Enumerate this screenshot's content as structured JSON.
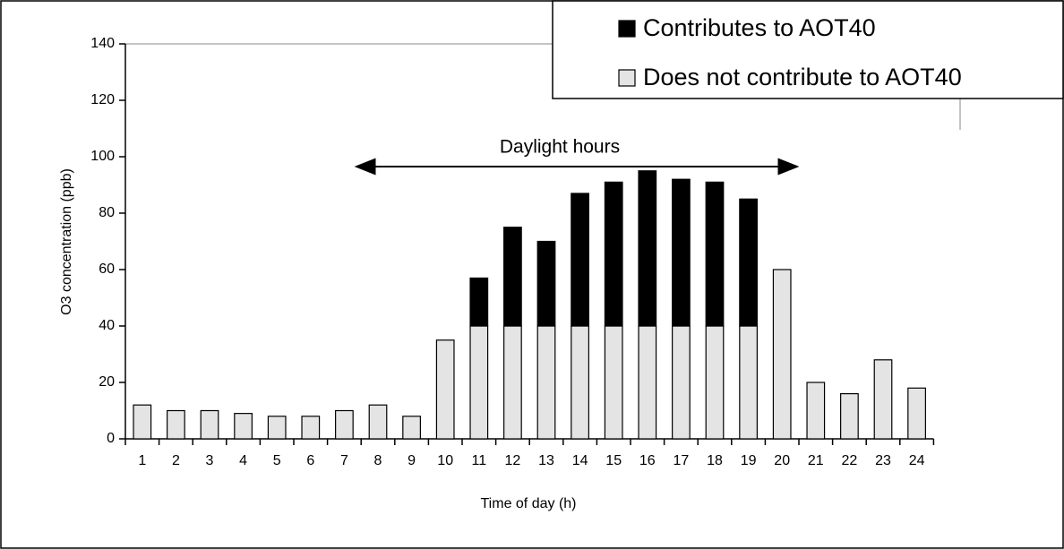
{
  "chart_data": {
    "type": "stacked_bar",
    "categories": [
      "1",
      "2",
      "3",
      "4",
      "5",
      "6",
      "7",
      "8",
      "9",
      "10",
      "11",
      "12",
      "13",
      "14",
      "15",
      "16",
      "17",
      "18",
      "19",
      "20",
      "21",
      "22",
      "23",
      "24"
    ],
    "series": [
      {
        "name": "Does not contribute to AOT40",
        "color": "#e4e4e4",
        "values": [
          12,
          10,
          10,
          9,
          8,
          8,
          10,
          12,
          8,
          35,
          40,
          40,
          40,
          40,
          40,
          40,
          40,
          40,
          40,
          60,
          20,
          16,
          28,
          18
        ]
      },
      {
        "name": "Contributes to AOT40",
        "color": "#000000",
        "values": [
          null,
          null,
          null,
          null,
          null,
          null,
          null,
          null,
          null,
          null,
          17,
          35,
          30,
          47,
          51,
          55,
          52,
          51,
          45,
          null,
          null,
          null,
          null,
          null
        ]
      }
    ],
    "ylim": [
      0,
      140
    ],
    "yticks": [
      0,
      20,
      40,
      60,
      80,
      100,
      120,
      140
    ],
    "xlabel": "Time of day (h)",
    "ylabel": "O3 concentration (ppb)",
    "annotation": "Daylight hours",
    "legend": "upper right"
  }
}
